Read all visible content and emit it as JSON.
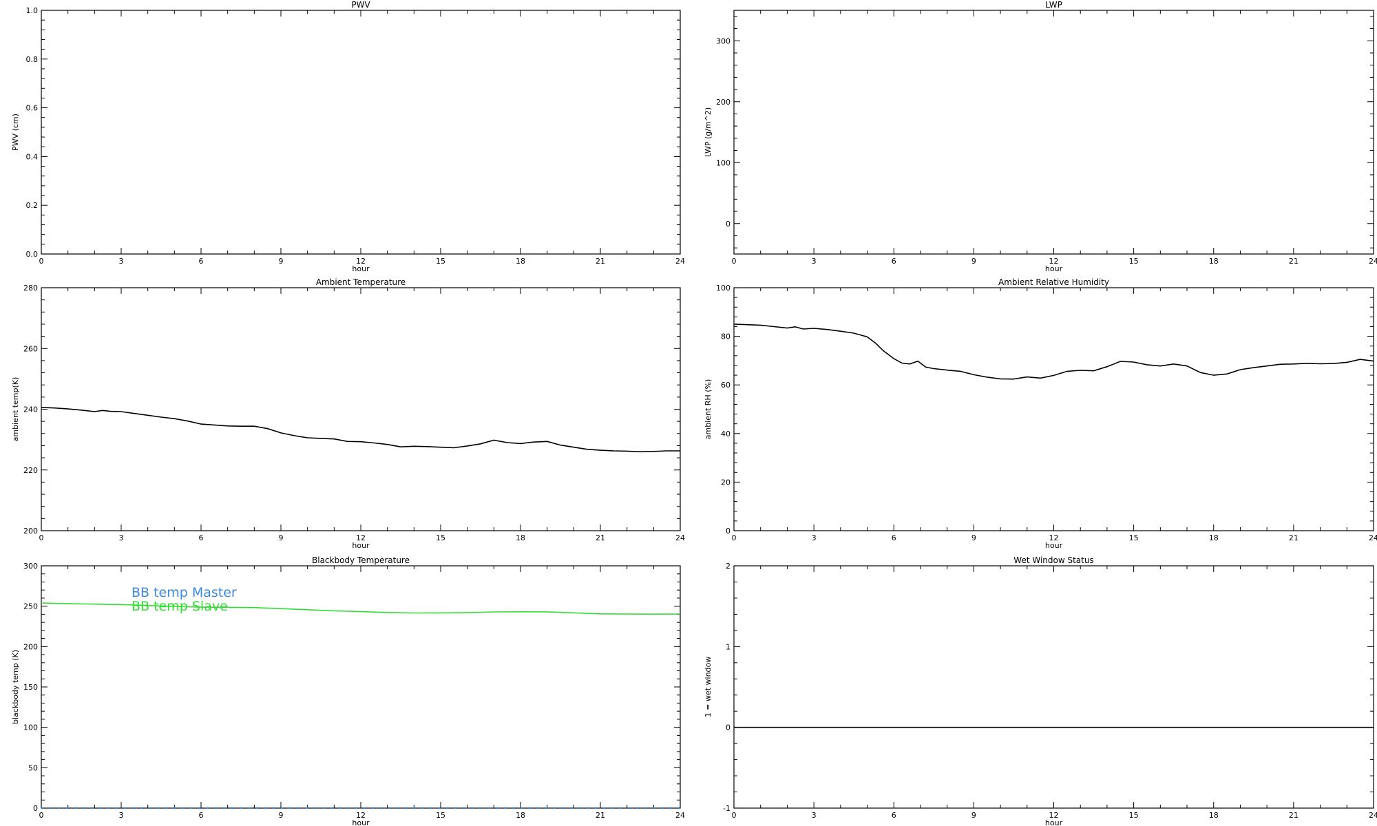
{
  "chart_data": [
    {
      "id": "pwv",
      "type": "line",
      "title": "PWV",
      "xlabel": "hour",
      "ylabel": "PWV (cm)",
      "xlim": [
        0,
        24
      ],
      "ylim": [
        0,
        1
      ],
      "xticks": [
        0,
        3,
        6,
        9,
        12,
        15,
        18,
        21,
        24
      ],
      "xtick_labels": [
        "0",
        "3",
        "6",
        "9",
        "12",
        "15",
        "18",
        "21",
        "24"
      ],
      "yticks": [
        0,
        0.2,
        0.4,
        0.6,
        0.8,
        1.0
      ],
      "ytick_labels": [
        "0.0",
        "0.2",
        "0.4",
        "0.6",
        "0.8",
        "1.0"
      ],
      "grid": false,
      "series": []
    },
    {
      "id": "lwp",
      "type": "line",
      "title": "LWP",
      "xlabel": "hour",
      "ylabel": "LWP (g/m^2)",
      "xlim": [
        0,
        24
      ],
      "ylim": [
        -50,
        350
      ],
      "xticks": [
        0,
        3,
        6,
        9,
        12,
        15,
        18,
        21,
        24
      ],
      "xtick_labels": [
        "0",
        "3",
        "6",
        "9",
        "12",
        "15",
        "18",
        "21",
        "24"
      ],
      "yticks": [
        0,
        100,
        200,
        300
      ],
      "ytick_labels": [
        "0",
        "100",
        "200",
        "300"
      ],
      "grid": false,
      "series": []
    },
    {
      "id": "temp",
      "type": "line",
      "title": "Ambient Temperature",
      "xlabel": "hour",
      "ylabel": "ambient temp(K)",
      "xlim": [
        0,
        24
      ],
      "ylim": [
        200,
        280
      ],
      "xticks": [
        0,
        3,
        6,
        9,
        12,
        15,
        18,
        21,
        24
      ],
      "xtick_labels": [
        "0",
        "3",
        "6",
        "9",
        "12",
        "15",
        "18",
        "21",
        "24"
      ],
      "yticks": [
        200,
        220,
        240,
        260,
        280
      ],
      "ytick_labels": [
        "200",
        "220",
        "240",
        "260",
        "280"
      ],
      "grid": false,
      "series": [
        {
          "color": "#000000",
          "x": [
            0,
            0.5,
            1,
            1.5,
            2,
            2.3,
            2.6,
            3,
            3.5,
            4,
            4.5,
            5,
            5.5,
            6,
            6.5,
            7,
            7.5,
            8,
            8.5,
            9,
            9.5,
            10,
            10.5,
            11,
            11.5,
            12,
            12.5,
            13,
            13.5,
            14,
            14.5,
            15,
            15.5,
            16,
            16.5,
            17,
            17.5,
            18,
            18.5,
            19,
            19.5,
            20,
            20.5,
            21,
            21.5,
            22,
            22.5,
            23,
            23.5,
            24
          ],
          "y": [
            240.6,
            240.4,
            240.1,
            239.7,
            239.2,
            239.6,
            239.3,
            239.2,
            238.6,
            238.0,
            237.4,
            236.9,
            236.1,
            235.1,
            234.8,
            234.5,
            234.4,
            234.4,
            233.6,
            232.2,
            231.3,
            230.6,
            230.4,
            230.2,
            229.4,
            229.3,
            228.9,
            228.4,
            227.6,
            227.8,
            227.7,
            227.5,
            227.3,
            227.9,
            228.6,
            229.8,
            229.0,
            228.7,
            229.2,
            229.4,
            228.2,
            227.5,
            226.8,
            226.5,
            226.3,
            226.2,
            226.0,
            226.1,
            226.3,
            226.3
          ]
        }
      ]
    },
    {
      "id": "rh",
      "type": "line",
      "title": "Ambient Relative Humidity",
      "xlabel": "hour",
      "ylabel": "ambient RH (%)",
      "xlim": [
        0,
        24
      ],
      "ylim": [
        0,
        100
      ],
      "xticks": [
        0,
        3,
        6,
        9,
        12,
        15,
        18,
        21,
        24
      ],
      "xtick_labels": [
        "0",
        "3",
        "6",
        "9",
        "12",
        "15",
        "18",
        "21",
        "24"
      ],
      "yticks": [
        0,
        20,
        40,
        60,
        80,
        100
      ],
      "ytick_labels": [
        "0",
        "20",
        "40",
        "60",
        "80",
        "100"
      ],
      "grid": false,
      "series": [
        {
          "color": "#000000",
          "x": [
            0,
            0.5,
            1,
            1.5,
            2,
            2.3,
            2.6,
            3,
            3.5,
            4,
            4.5,
            5,
            5.3,
            5.6,
            6,
            6.3,
            6.6,
            6.9,
            7.2,
            7.5,
            8,
            8.5,
            9,
            9.5,
            10,
            10.5,
            11,
            11.5,
            12,
            12.5,
            13,
            13.5,
            14,
            14.5,
            15,
            15.5,
            16,
            16.5,
            17,
            17.5,
            18,
            18.5,
            19,
            19.5,
            20,
            20.5,
            21,
            21.5,
            22,
            22.5,
            23,
            23.5,
            24
          ],
          "y": [
            85.0,
            84.8,
            84.6,
            84.0,
            83.4,
            83.9,
            83.0,
            83.3,
            82.8,
            82.1,
            81.3,
            79.8,
            77.3,
            74.1,
            70.8,
            69.0,
            68.6,
            69.8,
            67.3,
            66.7,
            66.1,
            65.6,
            64.2,
            63.2,
            62.5,
            62.4,
            63.3,
            62.8,
            63.9,
            65.6,
            66.0,
            65.8,
            67.5,
            69.7,
            69.4,
            68.3,
            67.8,
            68.6,
            67.8,
            65.1,
            64.0,
            64.5,
            66.3,
            67.1,
            67.8,
            68.5,
            68.6,
            68.9,
            68.7,
            68.8,
            69.3,
            70.5,
            69.8
          ]
        }
      ]
    },
    {
      "id": "bb",
      "type": "line",
      "title": "Blackbody Temperature",
      "xlabel": "hour",
      "ylabel": "blackbody temp (K)",
      "xlim": [
        0,
        24
      ],
      "ylim": [
        0,
        300
      ],
      "xticks": [
        0,
        3,
        6,
        9,
        12,
        15,
        18,
        21,
        24
      ],
      "xtick_labels": [
        "0",
        "3",
        "6",
        "9",
        "12",
        "15",
        "18",
        "21",
        "24"
      ],
      "yticks": [
        0,
        50,
        100,
        150,
        200,
        250,
        300
      ],
      "ytick_labels": [
        "0",
        "50",
        "100",
        "150",
        "200",
        "250",
        "300"
      ],
      "grid": false,
      "legend": [
        {
          "label": "BB temp Master",
          "color": "#3b8be0"
        },
        {
          "label": "BB temp Slave",
          "color": "#33dd33"
        }
      ],
      "series": [
        {
          "name": "BB temp Master",
          "color": "#3b8be0",
          "dashed": true,
          "x": [
            0,
            24
          ],
          "y": [
            0,
            0
          ]
        },
        {
          "name": "BB temp Slave",
          "color": "#33dd33",
          "x": [
            0,
            1,
            2,
            3,
            4,
            5,
            6,
            7,
            8,
            9,
            10,
            11,
            12,
            13,
            14,
            15,
            16,
            17,
            18,
            19,
            20,
            21,
            22,
            23,
            24
          ],
          "y": [
            254.0,
            253.2,
            252.5,
            252.0,
            250.8,
            249.6,
            248.8,
            248.6,
            248.3,
            247.0,
            245.6,
            244.3,
            243.2,
            242.2,
            241.6,
            241.7,
            242.0,
            242.9,
            243.1,
            243.0,
            241.8,
            240.5,
            240.3,
            240.2,
            240.3
          ]
        }
      ]
    },
    {
      "id": "wet",
      "type": "line",
      "title": "Wet Window Status",
      "xlabel": "hour",
      "ylabel": "1 = wet window",
      "xlim": [
        0,
        24
      ],
      "ylim": [
        -1,
        2
      ],
      "xticks": [
        0,
        3,
        6,
        9,
        12,
        15,
        18,
        21,
        24
      ],
      "xtick_labels": [
        "0",
        "3",
        "6",
        "9",
        "12",
        "15",
        "18",
        "21",
        "24"
      ],
      "yticks": [
        -1,
        0,
        1,
        2
      ],
      "ytick_labels": [
        "-1",
        "0",
        "1",
        "2"
      ],
      "grid": false,
      "series": [
        {
          "color": "#000000",
          "x": [
            0,
            24
          ],
          "y": [
            0,
            0
          ]
        }
      ]
    }
  ]
}
